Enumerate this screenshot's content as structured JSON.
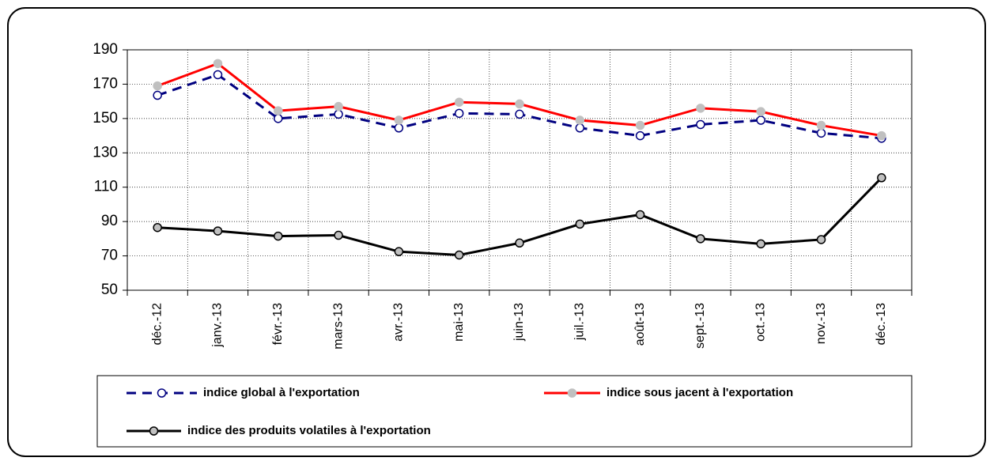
{
  "chart_data": {
    "type": "line",
    "categories": [
      "déc.-12",
      "janv.-13",
      "févr.-13",
      "mars-13",
      "avr.-13",
      "mai-13",
      "juin-13",
      "juil.-13",
      "août-13",
      "sept.-13",
      "oct.-13",
      "nov.-13",
      "déc.-13"
    ],
    "series": [
      {
        "name": "indice global à l'exportation",
        "color": "#000080",
        "line_style": "dashed",
        "marker_fill": "#ffffff",
        "values": [
          163.5,
          175.5,
          150,
          152.5,
          144.5,
          153,
          152.5,
          144.5,
          140,
          146.5,
          149,
          141.5,
          138.5
        ]
      },
      {
        "name": "indice sous jacent à l'exportation",
        "color": "#ff0000",
        "line_style": "solid",
        "marker_fill": "#c0c0c0",
        "values": [
          169,
          182,
          154.5,
          157,
          149,
          159.5,
          158.5,
          149,
          146,
          156,
          154,
          146,
          140
        ]
      },
      {
        "name": "indice des produits volatiles à l'exportation",
        "color": "#000000",
        "line_style": "solid",
        "marker_fill": "#c0c0c0",
        "values": [
          86.5,
          84.5,
          81.5,
          82,
          72.5,
          70.5,
          77.5,
          88.5,
          94,
          80,
          77,
          79.5,
          115.5
        ]
      }
    ],
    "ylim": [
      50,
      190
    ],
    "yticks": [
      50,
      70,
      90,
      110,
      130,
      150,
      170,
      190
    ],
    "grid": true,
    "legend": "bottom"
  }
}
